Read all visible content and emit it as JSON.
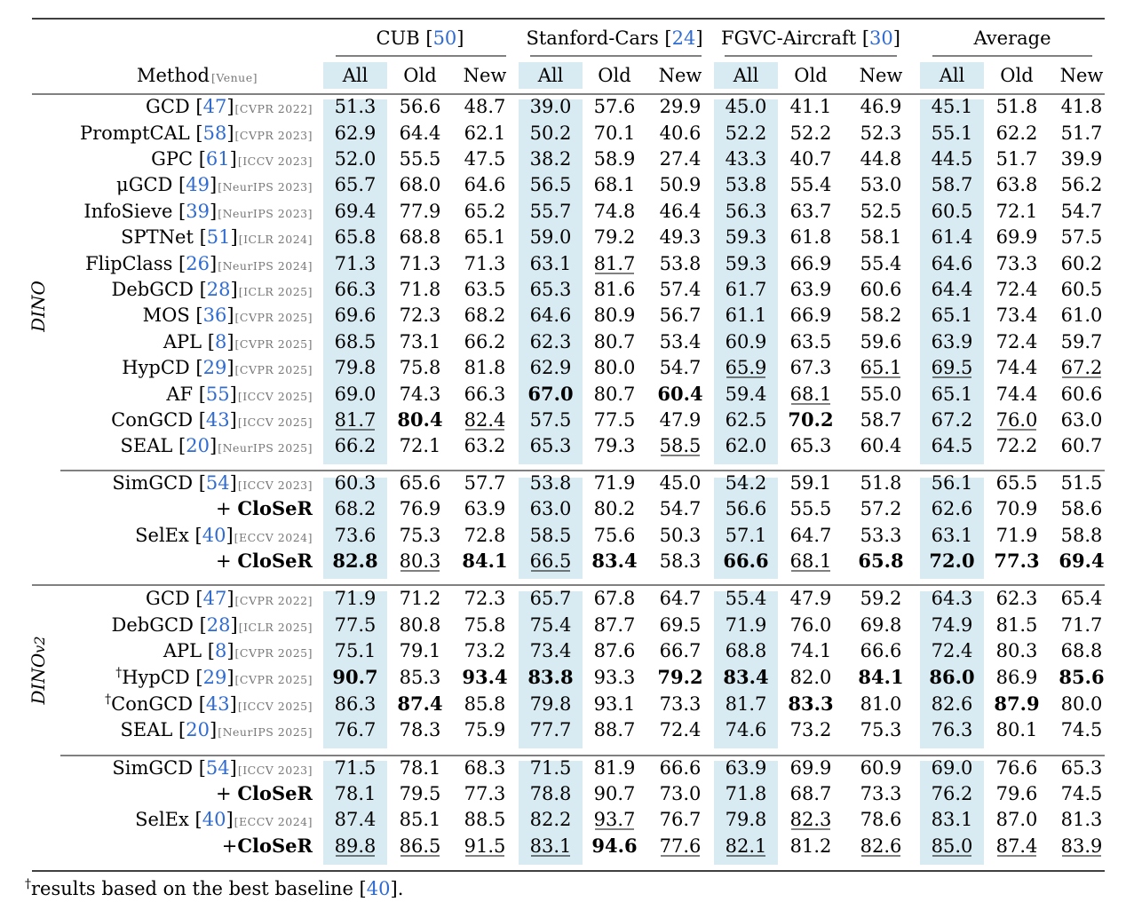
{
  "header": {
    "groups": [
      {
        "name": "CUB",
        "ref": "50"
      },
      {
        "name": "Stanford-Cars",
        "ref": "24"
      },
      {
        "name": "FGVC-Aircraft",
        "ref": "30"
      },
      {
        "name": "Average",
        "ref": ""
      }
    ],
    "method_label": "Method",
    "venue_label": "[Venue]",
    "subcols": [
      "All",
      "Old",
      "New"
    ]
  },
  "sections": [
    {
      "name": "DINO",
      "blocks": [
        [
          {
            "name": "GCD",
            "ref": "47",
            "venue": "CVPR 2022",
            "vals": [
              "51.3",
              "56.6",
              "48.7",
              "39.0",
              "57.6",
              "29.9",
              "45.0",
              "41.1",
              "46.9",
              "45.1",
              "51.8",
              "41.8"
            ]
          },
          {
            "name": "PromptCAL",
            "ref": "58",
            "venue": "CVPR 2023",
            "vals": [
              "62.9",
              "64.4",
              "62.1",
              "50.2",
              "70.1",
              "40.6",
              "52.2",
              "52.2",
              "52.3",
              "55.1",
              "62.2",
              "51.7"
            ]
          },
          {
            "name": "GPC",
            "ref": "61",
            "venue": "ICCV 2023",
            "vals": [
              "52.0",
              "55.5",
              "47.5",
              "38.2",
              "58.9",
              "27.4",
              "43.3",
              "40.7",
              "44.8",
              "44.5",
              "51.7",
              "39.9"
            ]
          },
          {
            "name": "μGCD",
            "ref": "49",
            "venue": "NeurIPS 2023",
            "vals": [
              "65.7",
              "68.0",
              "64.6",
              "56.5",
              "68.1",
              "50.9",
              "53.8",
              "55.4",
              "53.0",
              "58.7",
              "63.8",
              "56.2"
            ]
          },
          {
            "name": "InfoSieve",
            "ref": "39",
            "venue": "NeurIPS 2023",
            "vals": [
              "69.4",
              "77.9",
              "65.2",
              "55.7",
              "74.8",
              "46.4",
              "56.3",
              "63.7",
              "52.5",
              "60.5",
              "72.1",
              "54.7"
            ]
          },
          {
            "name": "SPTNet",
            "ref": "51",
            "venue": "ICLR 2024",
            "vals": [
              "65.8",
              "68.8",
              "65.1",
              "59.0",
              "79.2",
              "49.3",
              "59.3",
              "61.8",
              "58.1",
              "61.4",
              "69.9",
              "57.5"
            ]
          },
          {
            "name": "FlipClass",
            "ref": "26",
            "venue": "NeurIPS 2024",
            "vals": [
              "71.3",
              "71.3",
              "71.3",
              "63.1",
              "81.7",
              "53.8",
              "59.3",
              "66.9",
              "55.4",
              "64.6",
              "73.3",
              "60.2"
            ],
            "underline": [
              4
            ]
          },
          {
            "name": "DebGCD",
            "ref": "28",
            "venue": "ICLR 2025",
            "vals": [
              "66.3",
              "71.8",
              "63.5",
              "65.3",
              "81.6",
              "57.4",
              "61.7",
              "63.9",
              "60.6",
              "64.4",
              "72.4",
              "60.5"
            ]
          },
          {
            "name": "MOS",
            "ref": "36",
            "venue": "CVPR 2025",
            "vals": [
              "69.6",
              "72.3",
              "68.2",
              "64.6",
              "80.9",
              "56.7",
              "61.1",
              "66.9",
              "58.2",
              "65.1",
              "73.4",
              "61.0"
            ]
          },
          {
            "name": "APL",
            "ref": "8",
            "venue": "CVPR 2025",
            "vals": [
              "68.5",
              "73.1",
              "66.2",
              "62.3",
              "80.7",
              "53.4",
              "60.9",
              "63.5",
              "59.6",
              "63.9",
              "72.4",
              "59.7"
            ]
          },
          {
            "name": "HypCD",
            "ref": "29",
            "venue": "CVPR 2025",
            "vals": [
              "79.8",
              "75.8",
              "81.8",
              "62.9",
              "80.0",
              "54.7",
              "65.9",
              "67.3",
              "65.1",
              "69.5",
              "74.4",
              "67.2"
            ],
            "underline": [
              6,
              8,
              9,
              11
            ]
          },
          {
            "name": "AF",
            "ref": "55",
            "venue": "ICCV 2025",
            "vals": [
              "69.0",
              "74.3",
              "66.3",
              "67.0",
              "80.7",
              "60.4",
              "59.4",
              "68.1",
              "55.0",
              "65.1",
              "74.4",
              "60.6"
            ],
            "bold": [
              3,
              5
            ],
            "underline": [
              7
            ]
          },
          {
            "name": "ConGCD",
            "ref": "43",
            "venue": "ICCV 2025",
            "vals": [
              "81.7",
              "80.4",
              "82.4",
              "57.5",
              "77.5",
              "47.9",
              "62.5",
              "70.2",
              "58.7",
              "67.2",
              "76.0",
              "63.0"
            ],
            "bold": [
              1,
              7
            ],
            "underline": [
              0,
              2,
              10
            ]
          },
          {
            "name": "SEAL",
            "ref": "20",
            "venue": "NeurIPS 2025",
            "vals": [
              "66.2",
              "72.1",
              "63.2",
              "65.3",
              "79.3",
              "58.5",
              "62.0",
              "65.3",
              "60.4",
              "64.5",
              "72.2",
              "60.7"
            ],
            "underline": [
              5
            ]
          }
        ],
        [
          {
            "name": "SimGCD",
            "ref": "54",
            "venue": "ICCV 2023",
            "vals": [
              "60.3",
              "65.6",
              "57.7",
              "53.8",
              "71.9",
              "45.0",
              "54.2",
              "59.1",
              "51.8",
              "56.1",
              "65.5",
              "51.5"
            ]
          },
          {
            "name": "+ CloSeR",
            "ours": true,
            "vals": [
              "68.2",
              "76.9",
              "63.9",
              "63.0",
              "80.2",
              "54.7",
              "56.6",
              "55.5",
              "57.2",
              "62.6",
              "70.9",
              "58.6"
            ]
          },
          {
            "name": "SelEx",
            "ref": "40",
            "venue": "ECCV 2024",
            "vals": [
              "73.6",
              "75.3",
              "72.8",
              "58.5",
              "75.6",
              "50.3",
              "57.1",
              "64.7",
              "53.3",
              "63.1",
              "71.9",
              "58.8"
            ]
          },
          {
            "name": "+ CloSeR",
            "ours": true,
            "vals": [
              "82.8",
              "80.3",
              "84.1",
              "66.5",
              "83.4",
              "58.3",
              "66.6",
              "68.1",
              "65.8",
              "72.0",
              "77.3",
              "69.4"
            ],
            "bold": [
              0,
              2,
              4,
              6,
              8,
              9,
              10,
              11
            ],
            "underline": [
              1,
              3,
              7
            ]
          }
        ]
      ]
    },
    {
      "name": "DINOv2",
      "blocks": [
        [
          {
            "name": "GCD",
            "ref": "47",
            "venue": "CVPR 2022",
            "vals": [
              "71.9",
              "71.2",
              "72.3",
              "65.7",
              "67.8",
              "64.7",
              "55.4",
              "47.9",
              "59.2",
              "64.3",
              "62.3",
              "65.4"
            ]
          },
          {
            "name": "DebGCD",
            "ref": "28",
            "venue": "ICLR 2025",
            "vals": [
              "77.5",
              "80.8",
              "75.8",
              "75.4",
              "87.7",
              "69.5",
              "71.9",
              "76.0",
              "69.8",
              "74.9",
              "81.5",
              "71.7"
            ]
          },
          {
            "name": "APL",
            "ref": "8",
            "venue": "CVPR 2025",
            "vals": [
              "75.1",
              "79.1",
              "73.2",
              "73.4",
              "87.6",
              "66.7",
              "68.8",
              "74.1",
              "66.6",
              "72.4",
              "80.3",
              "68.8"
            ]
          },
          {
            "name": "HypCD",
            "dagger": "†",
            "ref": "29",
            "venue": "CVPR 2025",
            "vals": [
              "90.7",
              "85.3",
              "93.4",
              "83.8",
              "93.3",
              "79.2",
              "83.4",
              "82.0",
              "84.1",
              "86.0",
              "86.9",
              "85.6"
            ],
            "bold": [
              0,
              2,
              3,
              5,
              6,
              8,
              9,
              11
            ]
          },
          {
            "name": "ConGCD",
            "dagger": "†",
            "ref": "43",
            "venue": "ICCV 2025",
            "vals": [
              "86.3",
              "87.4",
              "85.8",
              "79.8",
              "93.1",
              "73.3",
              "81.7",
              "83.3",
              "81.0",
              "82.6",
              "87.9",
              "80.0"
            ],
            "bold": [
              1,
              7,
              10
            ]
          },
          {
            "name": "SEAL",
            "ref": "20",
            "venue": "NeurIPS 2025",
            "vals": [
              "76.7",
              "78.3",
              "75.9",
              "77.7",
              "88.7",
              "72.4",
              "74.6",
              "73.2",
              "75.3",
              "76.3",
              "80.1",
              "74.5"
            ]
          }
        ],
        [
          {
            "name": "SimGCD",
            "ref": "54",
            "venue": "ICCV 2023",
            "vals": [
              "71.5",
              "78.1",
              "68.3",
              "71.5",
              "81.9",
              "66.6",
              "63.9",
              "69.9",
              "60.9",
              "69.0",
              "76.6",
              "65.3"
            ]
          },
          {
            "name": "+ CloSeR",
            "ours": true,
            "vals": [
              "78.1",
              "79.5",
              "77.3",
              "78.8",
              "90.7",
              "73.0",
              "71.8",
              "68.7",
              "73.3",
              "76.2",
              "79.6",
              "74.5"
            ]
          },
          {
            "name": "SelEx",
            "ref": "40",
            "venue": "ECCV 2024",
            "vals": [
              "87.4",
              "85.1",
              "88.5",
              "82.2",
              "93.7",
              "76.7",
              "79.8",
              "82.3",
              "78.6",
              "83.1",
              "87.0",
              "81.3"
            ],
            "underline": [
              4,
              7
            ]
          },
          {
            "name": "+CloSeR",
            "ours": true,
            "vals": [
              "89.8",
              "86.5",
              "91.5",
              "83.1",
              "94.6",
              "77.6",
              "82.1",
              "81.2",
              "82.6",
              "85.0",
              "87.4",
              "83.9"
            ],
            "bold": [
              4
            ],
            "underline": [
              0,
              1,
              2,
              3,
              5,
              6,
              8,
              9,
              10,
              11
            ]
          }
        ]
      ]
    }
  ],
  "footnote": {
    "dagger": "†",
    "text": "results based on the best baseline [",
    "ref": "40",
    "end": "]."
  },
  "colors": {
    "highlight": "#d9ebf2",
    "ref": "#2f6bd1",
    "venue": "#777777"
  }
}
